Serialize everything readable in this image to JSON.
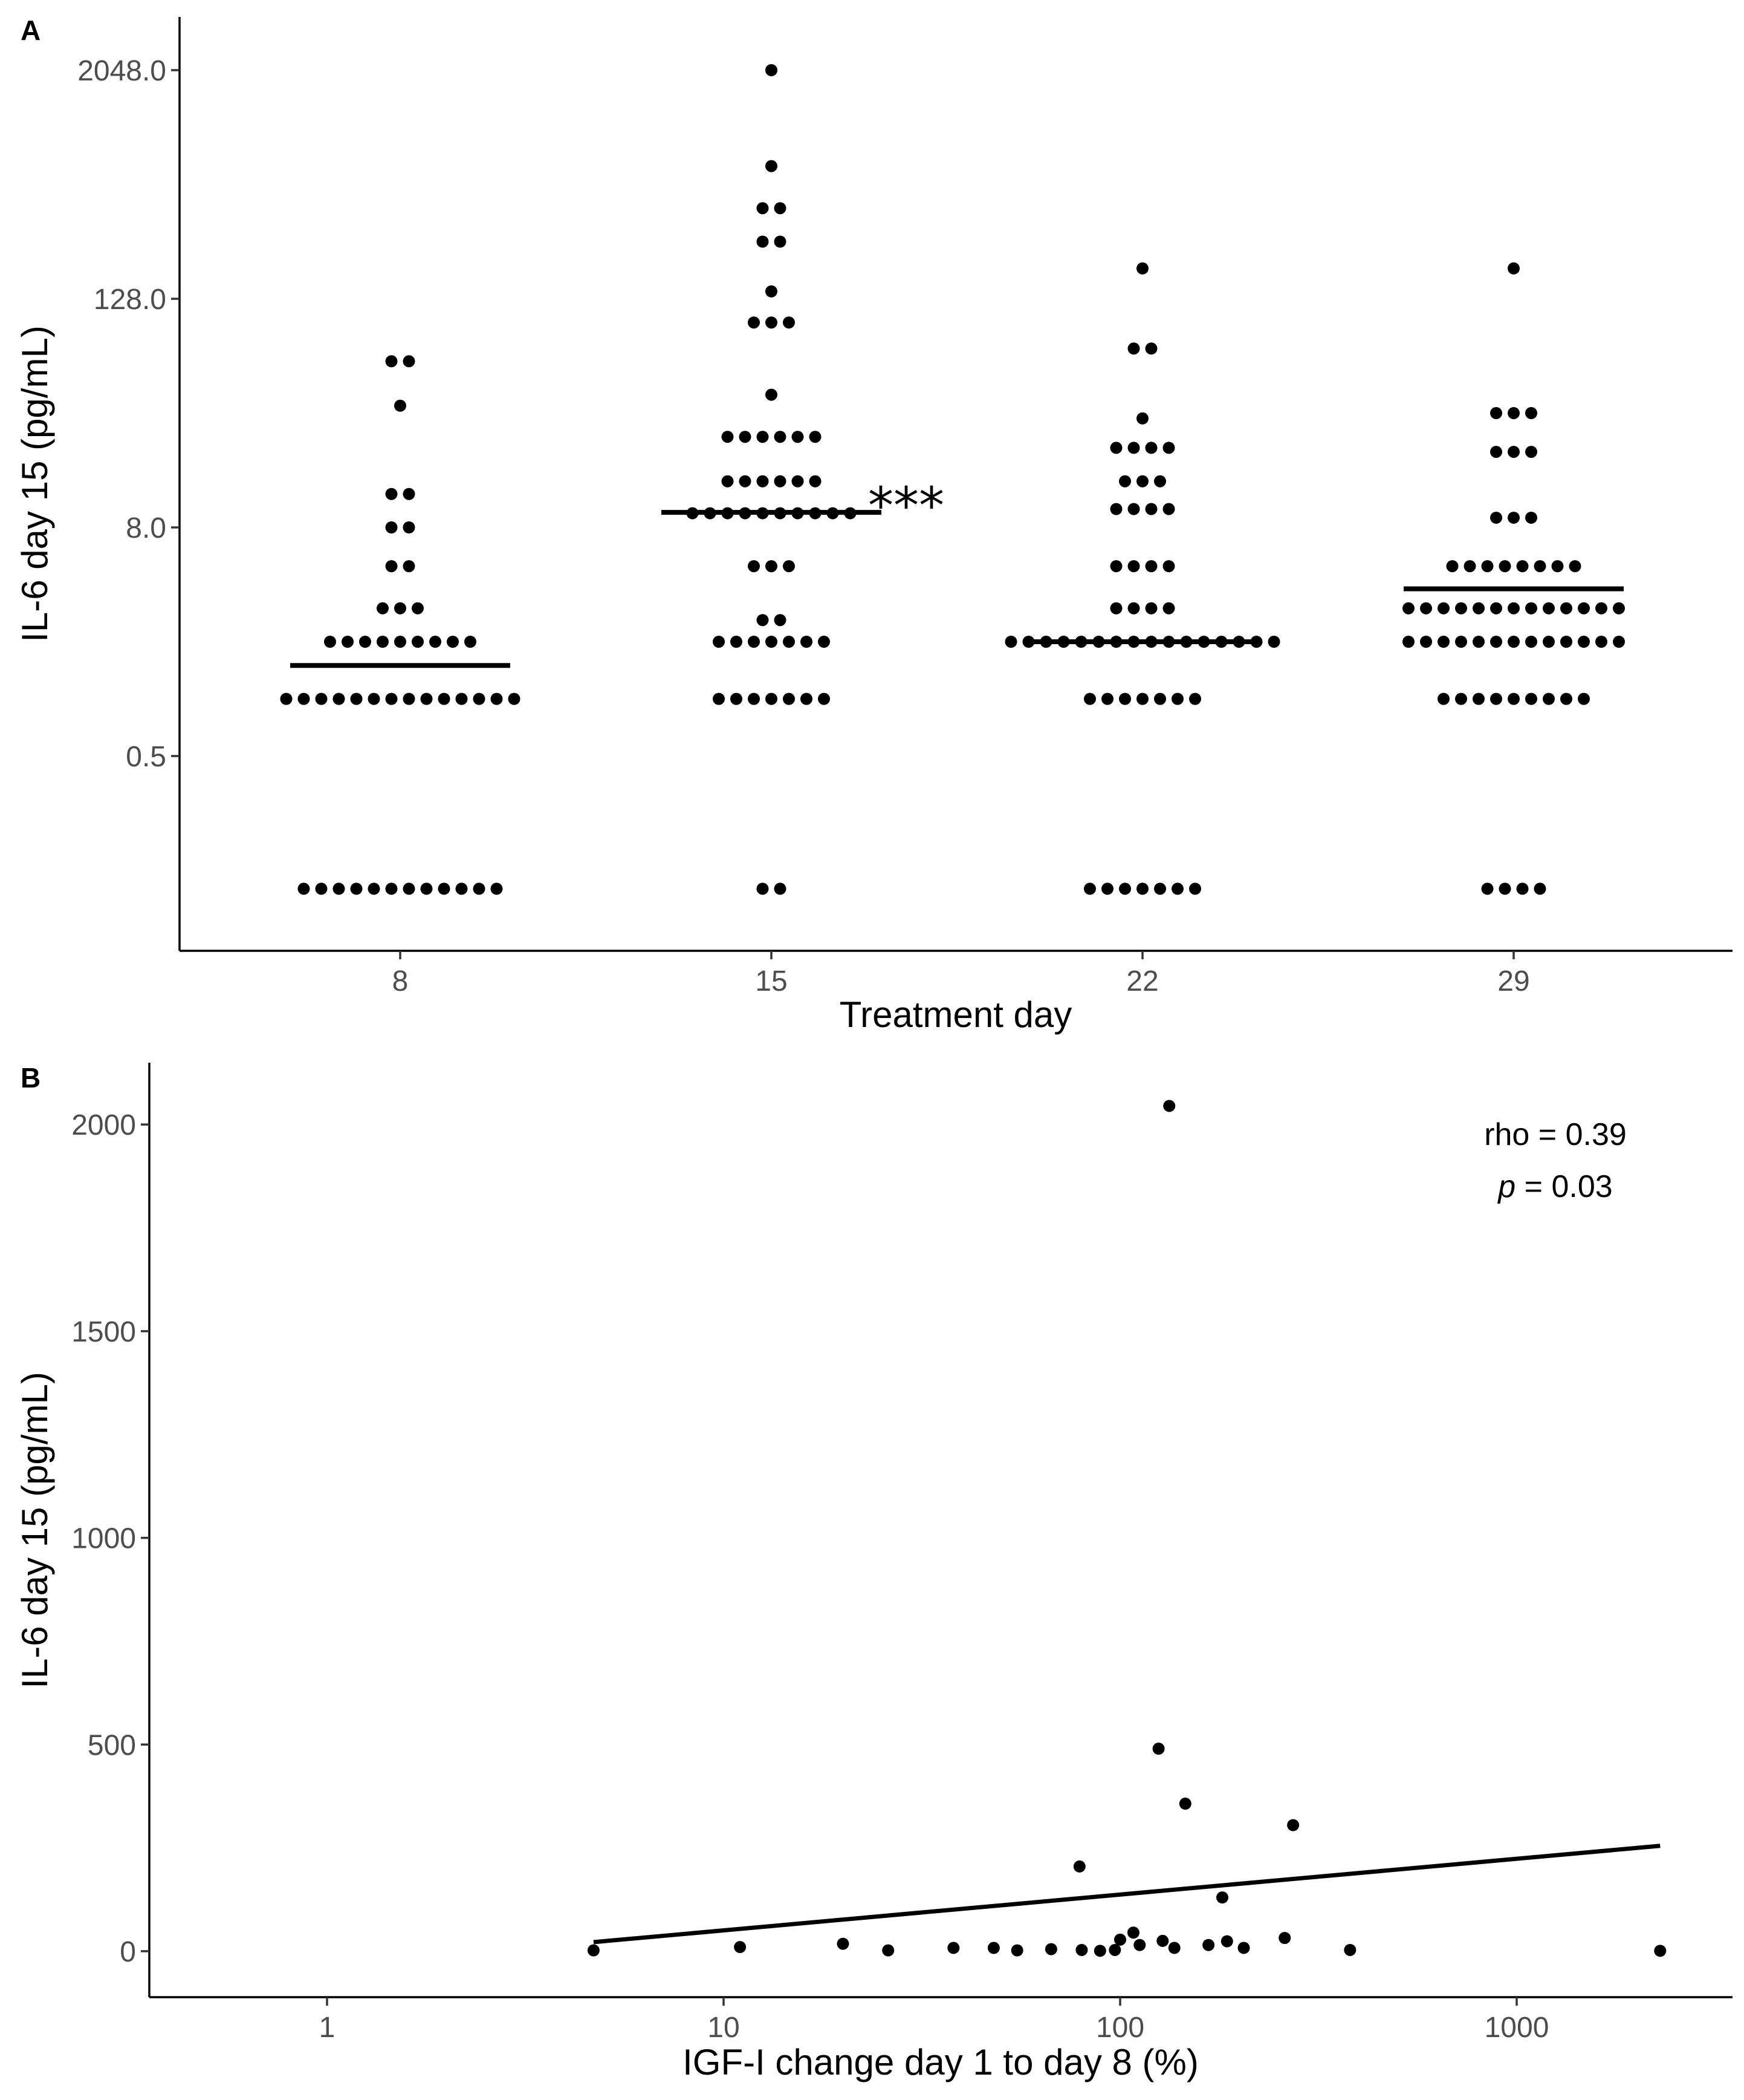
{
  "chart_data": [
    {
      "panel_label": "A",
      "type": "scatter",
      "xlabel": "Treatment day",
      "ylabel": "IL-6 day 15 (pg/mL)",
      "y_scale": "log2",
      "ylim": [
        0.0625,
        4096
      ],
      "yticks": [
        0.5,
        8,
        128,
        2048
      ],
      "ytick_labels": [
        "0.5",
        "8.0",
        "128.0",
        "2048.0"
      ],
      "categories": [
        "8",
        "15",
        "22",
        "29"
      ],
      "groups": [
        {
          "day": "8",
          "median": 1.5,
          "values": [
            60,
            60,
            35,
            12,
            12,
            8,
            8,
            5,
            5,
            3,
            3,
            3,
            2,
            2,
            2,
            2,
            2,
            2,
            2,
            2,
            2,
            1,
            1,
            1,
            1,
            1,
            1,
            1,
            1,
            1,
            1,
            1,
            1,
            1,
            1,
            0.1,
            0.1,
            0.1,
            0.1,
            0.1,
            0.1,
            0.1,
            0.1,
            0.1,
            0.1,
            0.1,
            0.1
          ]
        },
        {
          "day": "15",
          "median": 9.6,
          "significance": "***",
          "values": [
            2048,
            640,
            384,
            384,
            256,
            256,
            140,
            96,
            96,
            96,
            40,
            24,
            24,
            24,
            24,
            24,
            24,
            14,
            14,
            14,
            14,
            14,
            14,
            9.5,
            9.5,
            9.5,
            9.5,
            9.5,
            9.5,
            9.5,
            9.5,
            9.5,
            9.5,
            5,
            5,
            5,
            2.6,
            2.6,
            2,
            2,
            2,
            2,
            2,
            2,
            2,
            1,
            1,
            1,
            1,
            1,
            1,
            1,
            0.1,
            0.1
          ]
        },
        {
          "day": "22",
          "median": 2,
          "values": [
            185,
            70,
            70,
            30,
            21,
            21,
            21,
            21,
            14,
            14,
            14,
            10,
            10,
            10,
            10,
            5,
            5,
            5,
            5,
            3,
            3,
            3,
            3,
            2,
            2,
            2,
            2,
            2,
            2,
            2,
            2,
            2,
            2,
            2,
            2,
            2,
            2,
            2,
            2,
            1,
            1,
            1,
            1,
            1,
            1,
            1,
            0.1,
            0.1,
            0.1,
            0.1,
            0.1,
            0.1,
            0.1
          ]
        },
        {
          "day": "29",
          "median": 3.8,
          "values": [
            185,
            32,
            32,
            32,
            20,
            20,
            20,
            9,
            9,
            9,
            5,
            5,
            5,
            5,
            5,
            5,
            5,
            5,
            3,
            3,
            3,
            3,
            3,
            3,
            3,
            3,
            3,
            3,
            3,
            3,
            3,
            2,
            2,
            2,
            2,
            2,
            2,
            2,
            2,
            2,
            2,
            2,
            2,
            2,
            1,
            1,
            1,
            1,
            1,
            1,
            1,
            1,
            1,
            0.1,
            0.1,
            0.1,
            0.1
          ]
        }
      ]
    },
    {
      "panel_label": "B",
      "type": "scatter",
      "xlabel": "IGF-I change day 1 to day 8 (%)",
      "ylabel": "IL-6 day 15 (pg/mL)",
      "x_scale": "log10",
      "xlim": [
        0.4,
        3000
      ],
      "ylim": [
        -100,
        2150
      ],
      "xticks": [
        1,
        10,
        100,
        1000
      ],
      "xtick_labels": [
        "1",
        "10",
        "100",
        "1000"
      ],
      "yticks": [
        0,
        500,
        1000,
        1500,
        2000
      ],
      "ytick_labels": [
        "0",
        "500",
        "1000",
        "1500",
        "2000"
      ],
      "annotation": {
        "rho": "rho = 0.39",
        "p_symbol": "p",
        "p_value": " = 0.03"
      },
      "points": [
        {
          "x": 4.7,
          "y": 2
        },
        {
          "x": 11,
          "y": 10
        },
        {
          "x": 20,
          "y": 18
        },
        {
          "x": 26,
          "y": 2
        },
        {
          "x": 38,
          "y": 8
        },
        {
          "x": 48,
          "y": 8
        },
        {
          "x": 55,
          "y": 2
        },
        {
          "x": 67,
          "y": 5
        },
        {
          "x": 79,
          "y": 205
        },
        {
          "x": 80,
          "y": 3
        },
        {
          "x": 89,
          "y": 1
        },
        {
          "x": 97,
          "y": 3
        },
        {
          "x": 100,
          "y": 28
        },
        {
          "x": 108,
          "y": 45
        },
        {
          "x": 112,
          "y": 15
        },
        {
          "x": 125,
          "y": 490
        },
        {
          "x": 128,
          "y": 25
        },
        {
          "x": 133,
          "y": 2045
        },
        {
          "x": 137,
          "y": 8
        },
        {
          "x": 146,
          "y": 357
        },
        {
          "x": 167,
          "y": 15
        },
        {
          "x": 181,
          "y": 130
        },
        {
          "x": 186,
          "y": 24
        },
        {
          "x": 205,
          "y": 8
        },
        {
          "x": 260,
          "y": 32
        },
        {
          "x": 273,
          "y": 305
        },
        {
          "x": 380,
          "y": 3
        },
        {
          "x": 2300,
          "y": 1
        }
      ],
      "trend_line": {
        "x": [
          4.7,
          2300
        ],
        "y": [
          22,
          255
        ]
      }
    }
  ]
}
